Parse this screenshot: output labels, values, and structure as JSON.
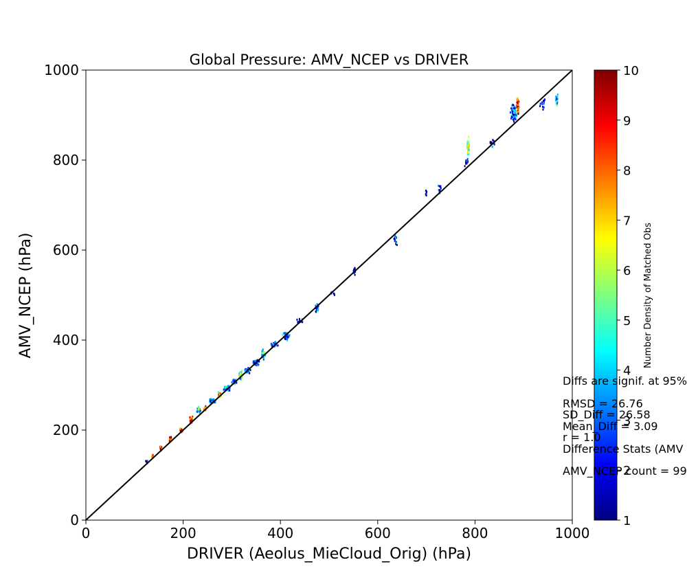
{
  "chart_data": {
    "type": "heatmap",
    "title": "Global Pressure: AMV_NCEP vs DRIVER",
    "xlabel": "DRIVER (Aeolus_MieCloud_Orig) (hPa)",
    "ylabel": "AMV_NCEP (hPa)",
    "xlim": [
      0,
      1000
    ],
    "ylim": [
      0,
      1000
    ],
    "xticks": [
      "0",
      "200",
      "400",
      "600",
      "800",
      "1000"
    ],
    "yticks": [
      "0",
      "200",
      "400",
      "600",
      "800",
      "1000"
    ],
    "colorbar": {
      "label": "Number Density of Matched Obs",
      "min": 1,
      "max": 10,
      "ticks": [
        "1",
        "2",
        "3",
        "4",
        "5",
        "6",
        "7",
        "8",
        "9",
        "10"
      ],
      "colormap": "jet"
    },
    "reference_line": {
      "from": [
        0,
        0
      ],
      "to": [
        1000,
        1000
      ],
      "color": "#000000"
    },
    "grid": false,
    "annotations": [
      "Diffs are signif. at 95%",
      "RMSD = 26.76",
      "SD_Diff = 26.58",
      "Mean_Diff = 3.09",
      "r = 1.0",
      "Difference Stats (AMV",
      "AMV_NCEP count = 99"
    ],
    "clusters": [
      {
        "x": 125,
        "y": 130,
        "sx": 4,
        "sy": 4,
        "n": 6,
        "d": 2
      },
      {
        "x": 137,
        "y": 142,
        "sx": 3,
        "sy": 6,
        "n": 14,
        "d": 8
      },
      {
        "x": 155,
        "y": 158,
        "sx": 3,
        "sy": 8,
        "n": 22,
        "d": 9
      },
      {
        "x": 174,
        "y": 178,
        "sx": 4,
        "sy": 9,
        "n": 26,
        "d": 9
      },
      {
        "x": 196,
        "y": 200,
        "sx": 4,
        "sy": 9,
        "n": 28,
        "d": 9
      },
      {
        "x": 216,
        "y": 222,
        "sx": 4,
        "sy": 10,
        "n": 30,
        "d": 9
      },
      {
        "x": 232,
        "y": 245,
        "sx": 6,
        "sy": 10,
        "n": 38,
        "d": 5
      },
      {
        "x": 245,
        "y": 248,
        "sx": 4,
        "sy": 6,
        "n": 20,
        "d": 9
      },
      {
        "x": 260,
        "y": 264,
        "sx": 8,
        "sy": 8,
        "n": 40,
        "d": 4
      },
      {
        "x": 275,
        "y": 278,
        "sx": 5,
        "sy": 10,
        "n": 34,
        "d": 7
      },
      {
        "x": 290,
        "y": 292,
        "sx": 9,
        "sy": 8,
        "n": 55,
        "d": 4
      },
      {
        "x": 305,
        "y": 308,
        "sx": 7,
        "sy": 8,
        "n": 40,
        "d": 4
      },
      {
        "x": 318,
        "y": 322,
        "sx": 5,
        "sy": 12,
        "n": 40,
        "d": 6
      },
      {
        "x": 332,
        "y": 332,
        "sx": 9,
        "sy": 8,
        "n": 45,
        "d": 3
      },
      {
        "x": 350,
        "y": 350,
        "sx": 9,
        "sy": 8,
        "n": 45,
        "d": 3
      },
      {
        "x": 365,
        "y": 368,
        "sx": 6,
        "sy": 14,
        "n": 45,
        "d": 5
      },
      {
        "x": 388,
        "y": 390,
        "sx": 9,
        "sy": 7,
        "n": 30,
        "d": 3
      },
      {
        "x": 412,
        "y": 410,
        "sx": 9,
        "sy": 12,
        "n": 50,
        "d": 3
      },
      {
        "x": 440,
        "y": 442,
        "sx": 8,
        "sy": 8,
        "n": 18,
        "d": 2
      },
      {
        "x": 475,
        "y": 472,
        "sx": 6,
        "sy": 12,
        "n": 30,
        "d": 3
      },
      {
        "x": 505,
        "y": 505,
        "sx": 8,
        "sy": 6,
        "n": 6,
        "d": 2
      },
      {
        "x": 552,
        "y": 552,
        "sx": 3,
        "sy": 12,
        "n": 14,
        "d": 2
      },
      {
        "x": 637,
        "y": 622,
        "sx": 4,
        "sy": 14,
        "n": 18,
        "d": 2
      },
      {
        "x": 700,
        "y": 730,
        "sx": 2,
        "sy": 18,
        "n": 8,
        "d": 2
      },
      {
        "x": 728,
        "y": 735,
        "sx": 4,
        "sy": 20,
        "n": 12,
        "d": 2
      },
      {
        "x": 786,
        "y": 830,
        "sx": 3,
        "sy": 28,
        "n": 40,
        "d": 6
      },
      {
        "x": 782,
        "y": 795,
        "sx": 5,
        "sy": 10,
        "n": 16,
        "d": 2
      },
      {
        "x": 835,
        "y": 840,
        "sx": 8,
        "sy": 20,
        "n": 12,
        "d": 2
      },
      {
        "x": 880,
        "y": 905,
        "sx": 8,
        "sy": 24,
        "n": 70,
        "d": 3
      },
      {
        "x": 888,
        "y": 918,
        "sx": 3,
        "sy": 28,
        "n": 60,
        "d": 9
      },
      {
        "x": 940,
        "y": 925,
        "sx": 8,
        "sy": 15,
        "n": 14,
        "d": 2
      },
      {
        "x": 968,
        "y": 935,
        "sx": 3,
        "sy": 20,
        "n": 28,
        "d": 4
      }
    ]
  }
}
